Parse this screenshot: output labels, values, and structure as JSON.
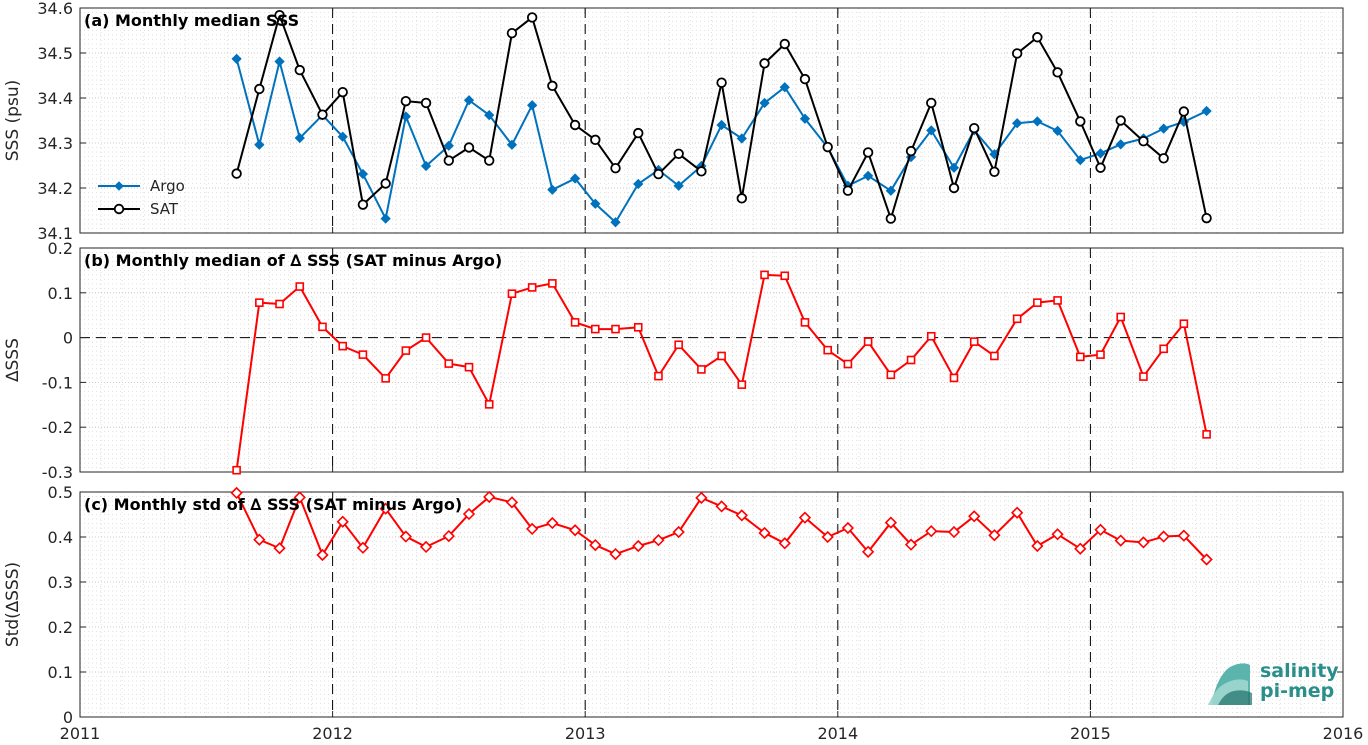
{
  "chart_data": [
    {
      "type": "line",
      "title": "(a) Monthly median SSS",
      "ylabel": "SSS (psu)",
      "xlim": [
        2011,
        2016
      ],
      "ylim": [
        34.1,
        34.6
      ],
      "yticks": [
        "34.1",
        "34.2",
        "34.3",
        "34.4",
        "34.5",
        "34.6"
      ],
      "grid": "dotted",
      "legend": "left",
      "x": [
        2011.62,
        2011.71,
        2011.79,
        2011.87,
        2011.96,
        2012.04,
        2012.12,
        2012.21,
        2012.29,
        2012.37,
        2012.46,
        2012.54,
        2012.62,
        2012.71,
        2012.79,
        2012.87,
        2012.96,
        2013.04,
        2013.12,
        2013.21,
        2013.29,
        2013.37,
        2013.46,
        2013.54,
        2013.62,
        2013.71,
        2013.79,
        2013.87,
        2013.96,
        2014.04,
        2014.12,
        2014.21,
        2014.29,
        2014.37,
        2014.46,
        2014.54,
        2014.62,
        2014.71,
        2014.79,
        2014.87,
        2014.96,
        2015.04,
        2015.12,
        2015.21,
        2015.29,
        2015.37,
        2015.46
      ],
      "series": [
        {
          "name": "Argo",
          "color": "#0072bd",
          "marker": "diamond",
          "values": [
            34.487,
            34.296,
            34.481,
            34.311,
            34.362,
            34.314,
            34.231,
            34.132,
            34.359,
            34.249,
            34.294,
            34.395,
            34.362,
            34.296,
            34.384,
            34.196,
            34.221,
            34.165,
            34.124,
            34.209,
            34.24,
            34.205,
            34.249,
            34.34,
            34.31,
            34.389,
            34.424,
            34.354,
            34.29,
            34.205,
            34.227,
            34.194,
            34.269,
            34.328,
            34.245,
            34.328,
            34.275,
            34.344,
            34.348,
            34.327,
            34.262,
            34.277,
            34.297,
            34.31,
            34.332,
            34.347,
            34.371
          ]
        },
        {
          "name": "SAT",
          "color": "#000000",
          "marker": "circle",
          "values": [
            34.232,
            34.42,
            34.584,
            34.462,
            34.363,
            34.413,
            34.163,
            34.21,
            34.393,
            34.389,
            34.261,
            34.29,
            34.261,
            34.544,
            34.579,
            34.427,
            34.34,
            34.307,
            34.244,
            34.322,
            34.231,
            34.276,
            34.237,
            34.434,
            34.177,
            34.477,
            34.52,
            34.442,
            34.291,
            34.194,
            34.279,
            34.132,
            34.282,
            34.389,
            34.2,
            34.333,
            34.236,
            34.499,
            34.535,
            34.457,
            34.348,
            34.245,
            34.35,
            34.304,
            34.266,
            34.37,
            34.133
          ]
        }
      ]
    },
    {
      "type": "line",
      "title": "(b) Monthly median of ∆ SSS (SAT minus Argo)",
      "ylabel": "∆SSS",
      "xlim": [
        2011,
        2016
      ],
      "ylim": [
        -0.3,
        0.2
      ],
      "yticks": [
        "-0.3",
        "-0.2",
        "-0.1",
        "0",
        "0.1",
        "0.2"
      ],
      "zero_line": "dashed",
      "grid": "dotted",
      "x": [
        2011.62,
        2011.71,
        2011.79,
        2011.87,
        2011.96,
        2012.04,
        2012.12,
        2012.21,
        2012.29,
        2012.37,
        2012.46,
        2012.54,
        2012.62,
        2012.71,
        2012.79,
        2012.87,
        2012.96,
        2013.04,
        2013.12,
        2013.21,
        2013.29,
        2013.37,
        2013.46,
        2013.54,
        2013.62,
        2013.71,
        2013.79,
        2013.87,
        2013.96,
        2014.04,
        2014.12,
        2014.21,
        2014.29,
        2014.37,
        2014.46,
        2014.54,
        2014.62,
        2014.71,
        2014.79,
        2014.87,
        2014.96,
        2015.04,
        2015.12,
        2015.21,
        2015.29,
        2015.37,
        2015.46
      ],
      "series": [
        {
          "color": "#ff0000",
          "marker": "square",
          "values": [
            -0.296,
            0.078,
            0.075,
            0.114,
            0.024,
            -0.019,
            -0.038,
            -0.091,
            -0.029,
            0.0,
            -0.058,
            -0.066,
            -0.149,
            0.098,
            0.112,
            0.121,
            0.034,
            0.019,
            0.019,
            0.023,
            -0.086,
            -0.016,
            -0.071,
            -0.041,
            -0.105,
            0.14,
            0.138,
            0.034,
            -0.028,
            -0.059,
            -0.009,
            -0.083,
            -0.05,
            0.003,
            -0.09,
            -0.009,
            -0.041,
            0.042,
            0.078,
            0.083,
            -0.043,
            -0.038,
            0.046,
            -0.087,
            -0.025,
            0.031,
            -0.216
          ]
        }
      ]
    },
    {
      "type": "line",
      "title": "(c) Monthly std of ∆ SSS (SAT minus Argo)",
      "ylabel": "Std(∆SSS)",
      "xlabel": "",
      "xlim": [
        2011,
        2016
      ],
      "xticks": [
        "2011",
        "2012",
        "2013",
        "2014",
        "2015",
        "2016"
      ],
      "ylim": [
        0,
        0.5
      ],
      "yticks": [
        "0",
        "0.1",
        "0.2",
        "0.3",
        "0.4",
        "0.5"
      ],
      "grid": "dotted",
      "x": [
        2011.62,
        2011.71,
        2011.79,
        2011.87,
        2011.96,
        2012.04,
        2012.12,
        2012.21,
        2012.29,
        2012.37,
        2012.46,
        2012.54,
        2012.62,
        2012.71,
        2012.79,
        2012.87,
        2012.96,
        2013.04,
        2013.12,
        2013.21,
        2013.29,
        2013.37,
        2013.46,
        2013.54,
        2013.62,
        2013.71,
        2013.79,
        2013.87,
        2013.96,
        2014.04,
        2014.12,
        2014.21,
        2014.29,
        2014.37,
        2014.46,
        2014.54,
        2014.62,
        2014.71,
        2014.79,
        2014.87,
        2014.96,
        2015.04,
        2015.12,
        2015.21,
        2015.29,
        2015.37,
        2015.46
      ],
      "series": [
        {
          "color": "#ff0000",
          "marker": "diamond",
          "values": [
            0.498,
            0.394,
            0.375,
            0.488,
            0.36,
            0.434,
            0.376,
            0.463,
            0.401,
            0.378,
            0.402,
            0.451,
            0.489,
            0.477,
            0.418,
            0.431,
            0.415,
            0.382,
            0.362,
            0.38,
            0.393,
            0.411,
            0.487,
            0.468,
            0.448,
            0.409,
            0.386,
            0.443,
            0.4,
            0.42,
            0.367,
            0.432,
            0.383,
            0.413,
            0.411,
            0.446,
            0.404,
            0.454,
            0.38,
            0.406,
            0.374,
            0.416,
            0.392,
            0.388,
            0.401,
            0.403,
            0.35
          ]
        }
      ]
    }
  ],
  "logo": {
    "line1": "salinity",
    "line2": "pi-mep",
    "color": "#2a8f8a"
  }
}
